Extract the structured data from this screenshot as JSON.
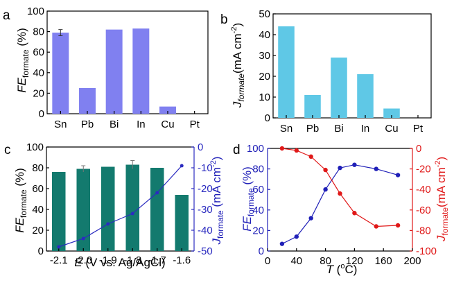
{
  "chart_data": [
    {
      "panel": "a",
      "type": "bar",
      "categories": [
        "Sn",
        "Pb",
        "Bi",
        "In",
        "Cu",
        "Pt"
      ],
      "values": [
        79,
        25,
        82,
        83,
        7,
        0
      ],
      "errors": [
        3,
        0,
        0,
        0,
        0,
        0
      ],
      "ylabel": "FE",
      "ylabel_sub": "formate",
      "ylabel_unit": " (%)",
      "ylim": [
        0,
        100
      ],
      "yticks": [
        0,
        20,
        40,
        60,
        80,
        100
      ],
      "bar_color": "#8080f0"
    },
    {
      "panel": "b",
      "type": "bar",
      "categories": [
        "Sn",
        "Pb",
        "Bi",
        "In",
        "Cu",
        "Pt"
      ],
      "values": [
        44,
        11,
        29,
        21,
        4.5,
        0
      ],
      "ylabel": "J",
      "ylabel_sub": "formate",
      "ylabel_unit": "(mA cm",
      "ylabel_sup": "-2",
      "ylabel_close": ")",
      "ylim": [
        0,
        50
      ],
      "yticks": [
        0,
        10,
        20,
        30,
        40,
        50
      ],
      "bar_color": "#5fc8e6"
    },
    {
      "panel": "c",
      "type": "bar+line",
      "categories": [
        "-2.1",
        "-2.0",
        "-1.9",
        "-1.8",
        "-1.7",
        "-1.6"
      ],
      "bar_series": {
        "name": "FE formate",
        "values": [
          76,
          79,
          81,
          83,
          80,
          54
        ],
        "errors": [
          0,
          3,
          0,
          4,
          0,
          0
        ],
        "color": "#137a6e"
      },
      "line_series": {
        "name": "J formate",
        "values": [
          -48,
          -44,
          -37,
          -32,
          -22,
          -9
        ],
        "color": "#2b2bc0"
      },
      "xlabel": "E",
      "xlabel_rest": " (V vs. Ag/AgCl)",
      "ylabel_left": "FE",
      "ylabel_left_sub": "formate",
      "ylabel_left_unit": " (%)",
      "ylabel_right": "J",
      "ylabel_right_sub": "formate",
      "ylabel_right_unit": " (mA cm",
      "ylabel_right_sup": "-2",
      "ylabel_right_close": ")",
      "ylim_left": [
        0,
        100
      ],
      "yticks_left": [
        0,
        20,
        40,
        60,
        80,
        100
      ],
      "ylim_right": [
        -50,
        0
      ],
      "yticks_right": [
        -50,
        -40,
        -30,
        -20,
        -10,
        0
      ]
    },
    {
      "panel": "d",
      "type": "line",
      "x": [
        20,
        40,
        60,
        80,
        100,
        120,
        150,
        180
      ],
      "series": [
        {
          "name": "FE formate",
          "axis": "left",
          "values": [
            7,
            14,
            32,
            60,
            81,
            84,
            80,
            74
          ],
          "color": "#2020b8"
        },
        {
          "name": "J formate",
          "axis": "right",
          "values": [
            0,
            -2,
            -8,
            -21,
            -44,
            -63,
            -76,
            -75
          ],
          "color": "#e01818"
        }
      ],
      "xlabel": "T",
      "xlabel_rest": " (",
      "xlabel_sup": "o",
      "xlabel_close": "C)",
      "xlim": [
        0,
        200
      ],
      "xticks": [
        0,
        40,
        80,
        120,
        160,
        200
      ],
      "ylabel_left": "FE",
      "ylabel_left_sub": "formate",
      "ylabel_left_unit": " (%)",
      "ylabel_right": "J",
      "ylabel_right_sub": "formate",
      "ylabel_right_unit": "(mA cm",
      "ylabel_right_sup": "-2",
      "ylabel_right_close": ")",
      "ylim_left": [
        0,
        100
      ],
      "yticks_left": [
        0,
        20,
        40,
        60,
        80,
        100
      ],
      "ylim_right": [
        -100,
        0
      ],
      "yticks_right": [
        -100,
        -80,
        -60,
        -40,
        -20,
        0
      ]
    }
  ]
}
